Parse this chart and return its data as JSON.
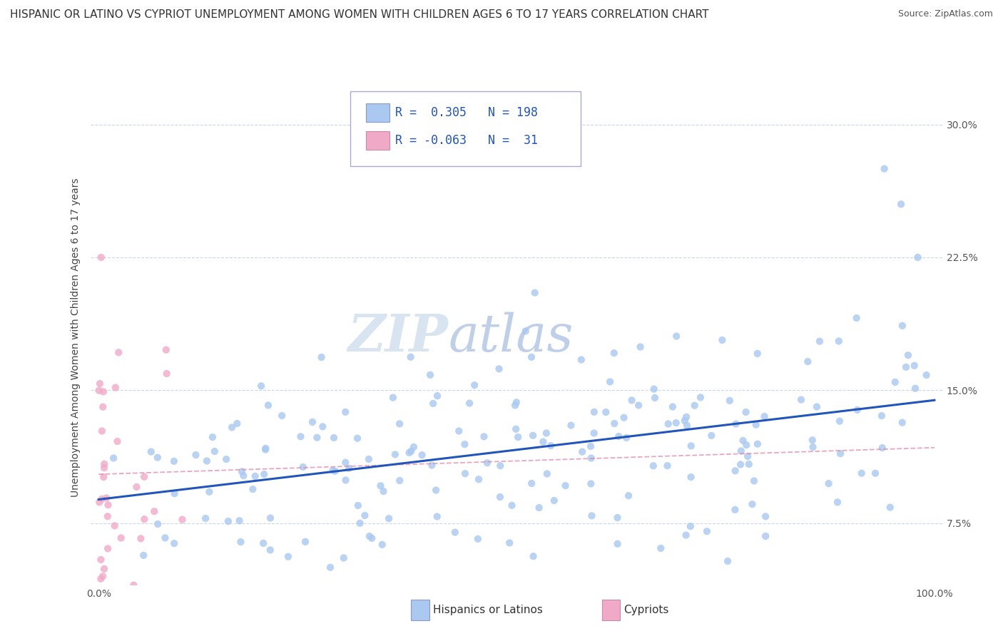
{
  "title": "HISPANIC OR LATINO VS CYPRIOT UNEMPLOYMENT AMONG WOMEN WITH CHILDREN AGES 6 TO 17 YEARS CORRELATION CHART",
  "source": "Source: ZipAtlas.com",
  "ylabel": "Unemployment Among Women with Children Ages 6 to 17 years",
  "xlim": [
    -1,
    101
  ],
  "ylim": [
    4,
    32
  ],
  "ytick_values": [
    7.5,
    15.0,
    22.5,
    30.0
  ],
  "xtick_values": [
    0,
    100
  ],
  "xtick_labels": [
    "0.0%",
    "100.0%"
  ],
  "legend_label1": "Hispanics or Latinos",
  "legend_label2": "Cypriots",
  "R1": 0.305,
  "N1": 198,
  "R2": -0.063,
  "N2": 31,
  "scatter_color1": "#aac8f0",
  "scatter_color2": "#f0aac8",
  "line_color1": "#2255bb",
  "line_color2": "#e080a0",
  "background_color": "#ffffff",
  "grid_color": "#c8d8e8",
  "watermark_color": "#d8e4f0",
  "title_fontsize": 11,
  "axis_label_fontsize": 10,
  "tick_fontsize": 10,
  "legend_fontsize": 12
}
